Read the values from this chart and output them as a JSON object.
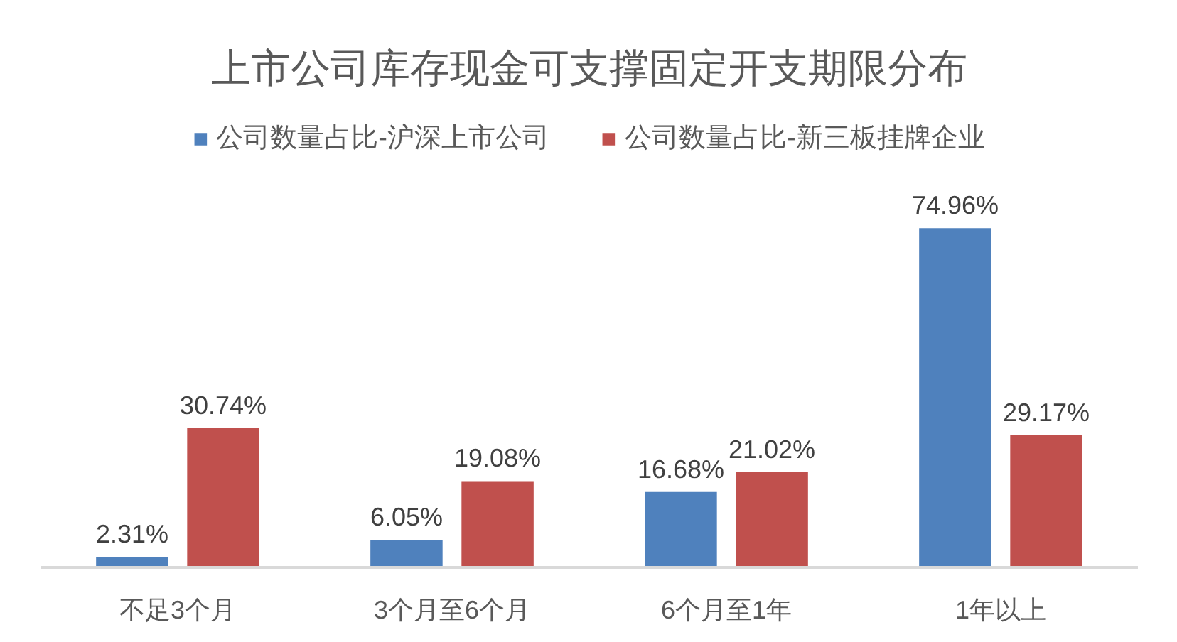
{
  "chart_data": {
    "type": "bar",
    "title": "上市公司库存现金可支撑固定开支期限分布",
    "categories": [
      "不足3个月",
      "3个月至6个月",
      "6个月至1年",
      "1年以上"
    ],
    "series": [
      {
        "name": "公司数量占比-沪深上市公司",
        "color": "#4f81bd",
        "values": [
          2.31,
          6.05,
          16.68,
          74.96
        ],
        "value_labels": [
          "2.31%",
          "6.05%",
          "16.68%",
          "74.96%"
        ]
      },
      {
        "name": "公司数量占比-新三板挂牌企业",
        "color": "#c0504d",
        "values": [
          30.74,
          19.08,
          21.02,
          29.17
        ],
        "value_labels": [
          "30.74%",
          "19.08%",
          "21.02%",
          "29.17%"
        ]
      }
    ],
    "legend": "top",
    "grid": false,
    "tick_labels": "x"
  }
}
